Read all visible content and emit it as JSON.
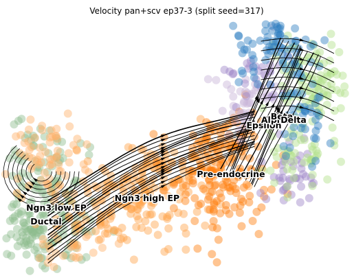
{
  "chart_data": {
    "type": "scatter",
    "title": "Velocity pan+scv ep37-3 (split seed=317)",
    "embedding": "umap",
    "overlay": "velocity streamlines with arrows",
    "axes_visible": false,
    "grid": false,
    "legend": "on data",
    "marker_alpha": 0.45,
    "colors": {
      "Ductal": "#8fbc8f",
      "Ngn3 low EP": "#ffb26b",
      "Ngn3 high EP": "#ffa54c",
      "Pre-endocrine": "#ff7f0e",
      "Alpha": "#2f7fc1",
      "Beta": "#b2df8a",
      "Delta": "#9e86c8",
      "Epsilon": "#c7b4d8",
      "stream": "#000000"
    },
    "cluster_labels": [
      {
        "name": "Ngn3 low EP"
      },
      {
        "name": "Ductal"
      },
      {
        "name": "Ngn3 high EP"
      },
      {
        "name": "Pre-endocrine"
      },
      {
        "name": "Epsilon"
      },
      {
        "name": "Alpha"
      },
      {
        "name": "Beta"
      },
      {
        "name": "Delta"
      }
    ],
    "series": [
      {
        "name": "Ductal",
        "region": "lower-left lobe"
      },
      {
        "name": "Ngn3 low EP",
        "region": "upper-left lobe"
      },
      {
        "name": "Ngn3 high EP",
        "region": "central band"
      },
      {
        "name": "Pre-endocrine",
        "region": "center-right"
      },
      {
        "name": "Alpha",
        "region": "top-right"
      },
      {
        "name": "Beta",
        "region": "right edge"
      },
      {
        "name": "Delta",
        "region": "right interior"
      },
      {
        "name": "Epsilon",
        "region": "upper-center-right"
      }
    ]
  }
}
